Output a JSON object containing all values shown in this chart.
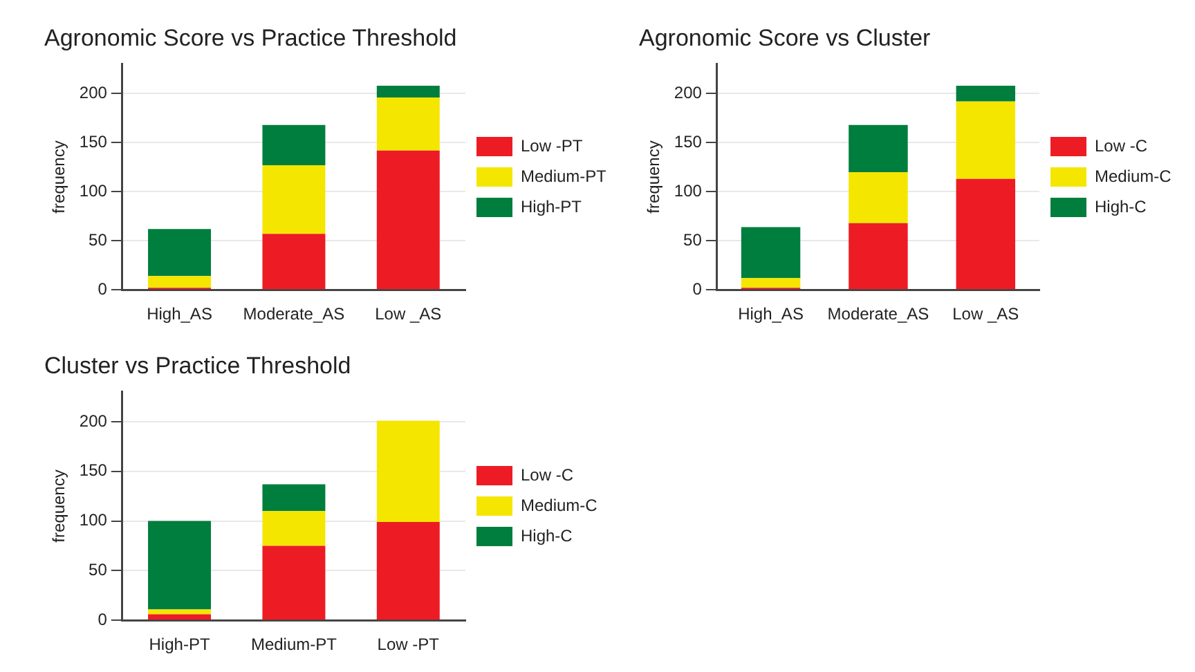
{
  "chart_data": [
    {
      "type": "bar",
      "title": "Agronomic Score vs Practice Threshold",
      "ylabel": "frequency",
      "categories": [
        "High_AS",
        "Moderate_AS",
        "Low _AS"
      ],
      "stacked": true,
      "ylim": [
        0,
        230
      ],
      "yticks": [
        0,
        50,
        100,
        150,
        200
      ],
      "grid": "y",
      "legend": "right",
      "series": [
        {
          "name": "Low -PT",
          "color": "#ed1c24",
          "values": [
            2,
            57,
            142
          ]
        },
        {
          "name": "Medium-PT",
          "color": "#f5e600",
          "values": [
            12,
            70,
            54
          ]
        },
        {
          "name": "High-PT",
          "color": "#007e3d",
          "values": [
            48,
            41,
            12
          ]
        }
      ]
    },
    {
      "type": "bar",
      "title": "Agronomic Score vs Cluster",
      "ylabel": "frequency",
      "categories": [
        "High_AS",
        "Moderate_AS",
        "Low _AS"
      ],
      "stacked": true,
      "ylim": [
        0,
        230
      ],
      "yticks": [
        0,
        50,
        100,
        150,
        200
      ],
      "grid": "y",
      "legend": "right",
      "series": [
        {
          "name": "Low -C",
          "color": "#ed1c24",
          "values": [
            2,
            68,
            113
          ]
        },
        {
          "name": "Medium-C",
          "color": "#f5e600",
          "values": [
            10,
            52,
            79
          ]
        },
        {
          "name": "High-C",
          "color": "#007e3d",
          "values": [
            52,
            48,
            16
          ]
        }
      ]
    },
    {
      "type": "bar",
      "title": "Cluster vs Practice Threshold",
      "ylabel": "frequency",
      "categories": [
        "High-PT",
        "Medium-PT",
        "Low -PT"
      ],
      "stacked": true,
      "ylim": [
        0,
        230
      ],
      "yticks": [
        0,
        50,
        100,
        150,
        200
      ],
      "grid": "y",
      "legend": "right",
      "series": [
        {
          "name": "Low -C",
          "color": "#ed1c24",
          "values": [
            6,
            75,
            99
          ]
        },
        {
          "name": "Medium-C",
          "color": "#f5e600",
          "values": [
            5,
            35,
            102
          ]
        },
        {
          "name": "High-C",
          "color": "#007e3d",
          "values": [
            89,
            27,
            0
          ]
        }
      ]
    }
  ]
}
